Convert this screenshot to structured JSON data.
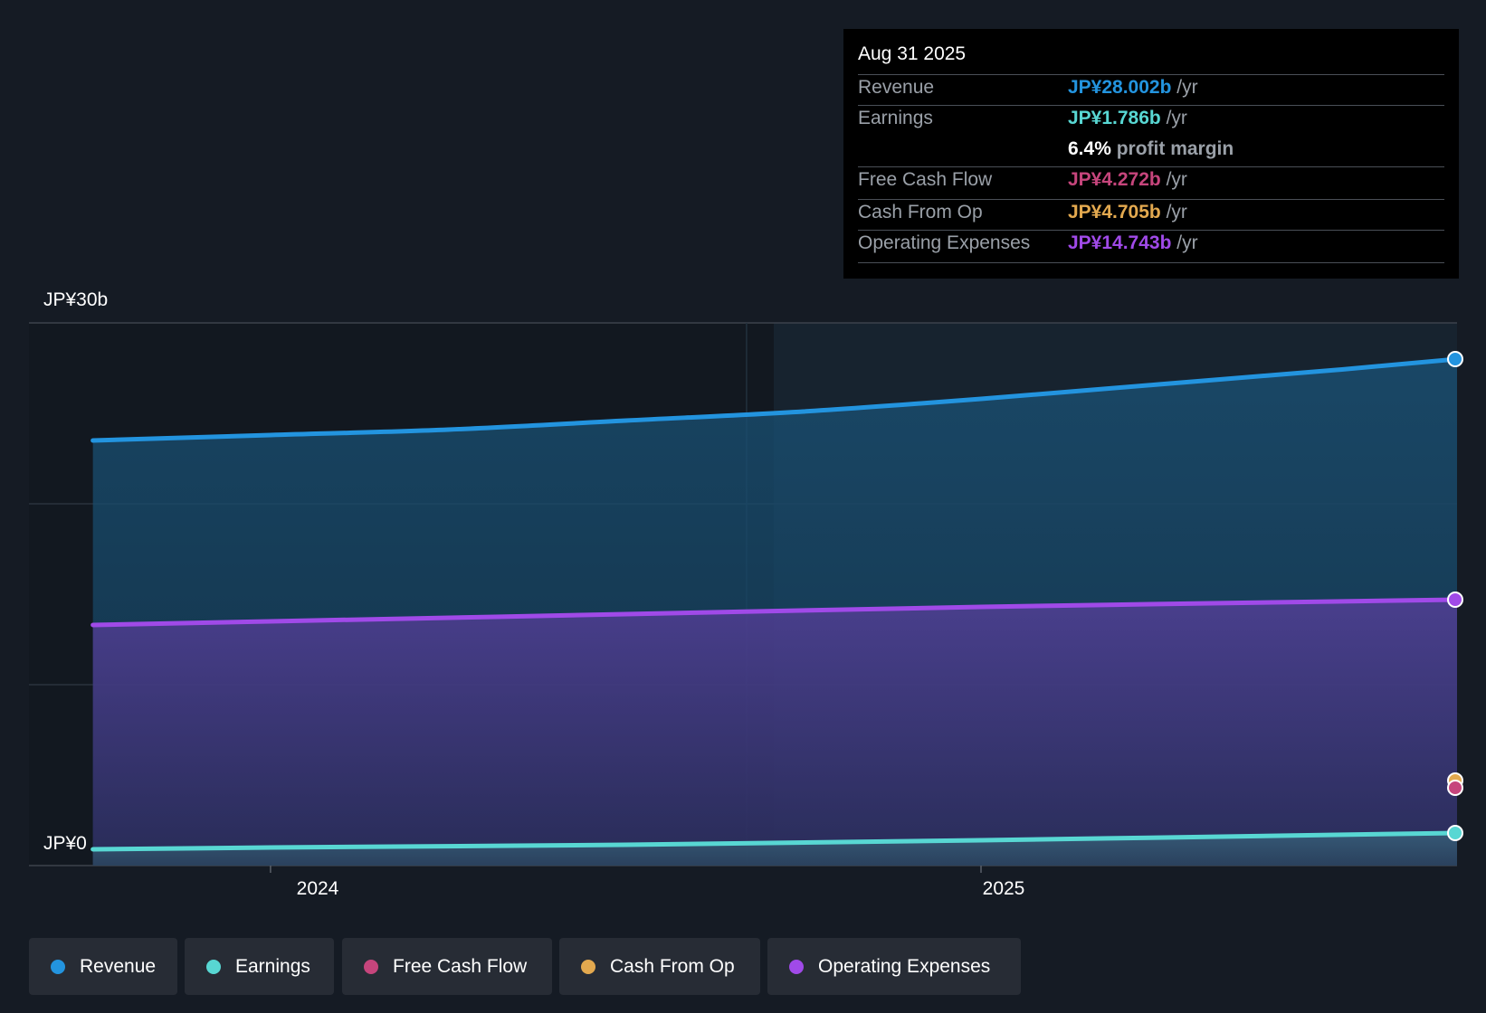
{
  "colors": {
    "revenue": "#2394df",
    "earnings": "#58d7d3",
    "free_cash_flow": "#c6457c",
    "cash_from_op": "#e3a94f",
    "operating_expenses": "#a04ae8",
    "background": "#151b24"
  },
  "tooltip": {
    "date": "Aug 31 2025",
    "rows": [
      {
        "label": "Revenue",
        "value": "JP¥28.002b",
        "unit": "/yr"
      },
      {
        "label": "Earnings",
        "value": "JP¥1.786b",
        "unit": "/yr"
      },
      {
        "label": "",
        "value": "6.4%",
        "unit": "profit margin"
      },
      {
        "label": "Free Cash Flow",
        "value": "JP¥4.272b",
        "unit": "/yr"
      },
      {
        "label": "Cash From Op",
        "value": "JP¥4.705b",
        "unit": "/yr"
      },
      {
        "label": "Operating Expenses",
        "value": "JP¥14.743b",
        "unit": "/yr"
      }
    ]
  },
  "chart_data": {
    "type": "area",
    "y_max_label": "JP¥30b",
    "y_min_label": "JP¥0",
    "ylim": [
      0,
      30
    ],
    "xlim": [
      2023.66,
      2025.67
    ],
    "x_ticks": [
      {
        "value": 2024.0,
        "label": "2024"
      },
      {
        "value": 2025.0,
        "label": "2025"
      }
    ],
    "past_boundary_x": 2024.67,
    "series": [
      {
        "key": "revenue",
        "name": "Revenue",
        "x": [
          2023.75,
          2024.0,
          2024.25,
          2024.5,
          2024.75,
          2025.0,
          2025.25,
          2025.5,
          2025.67
        ],
        "values": [
          23.5,
          23.8,
          24.1,
          24.6,
          25.1,
          25.8,
          26.6,
          27.4,
          28.0
        ]
      },
      {
        "key": "operating_expenses",
        "name": "Operating Expenses",
        "x": [
          2023.75,
          2024.0,
          2024.5,
          2025.0,
          2025.5,
          2025.67
        ],
        "values": [
          13.3,
          13.5,
          13.9,
          14.3,
          14.6,
          14.7
        ]
      },
      {
        "key": "earnings",
        "name": "Earnings",
        "x": [
          2023.75,
          2024.0,
          2024.5,
          2025.0,
          2025.5,
          2025.67
        ],
        "values": [
          0.9,
          1.0,
          1.15,
          1.4,
          1.7,
          1.8
        ]
      }
    ],
    "end_points": [
      {
        "key": "revenue",
        "value": 28.0
      },
      {
        "key": "operating_expenses",
        "value": 14.7
      },
      {
        "key": "cash_from_op",
        "value": 4.7
      },
      {
        "key": "free_cash_flow",
        "value": 4.3
      },
      {
        "key": "earnings",
        "value": 1.8
      }
    ]
  },
  "legend": [
    {
      "key": "revenue",
      "label": "Revenue"
    },
    {
      "key": "earnings",
      "label": "Earnings"
    },
    {
      "key": "free_cash_flow",
      "label": "Free Cash Flow"
    },
    {
      "key": "cash_from_op",
      "label": "Cash From Op"
    },
    {
      "key": "operating_expenses",
      "label": "Operating Expenses"
    }
  ]
}
